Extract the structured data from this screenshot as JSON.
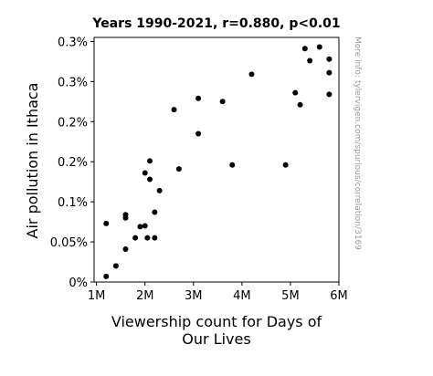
{
  "chart_data": {
    "type": "scatter",
    "title": "Years 1990-2021, r=0.880, p<0.01",
    "xlabel_lines": [
      "Viewership count for Days of",
      "Our Lives"
    ],
    "ylabel": "Air pollution in Ithaca",
    "xlim": [
      950000,
      6000000
    ],
    "ylim": [
      0,
      0.00305
    ],
    "xticks": [
      {
        "value": 1000000,
        "label": "1M"
      },
      {
        "value": 2000000,
        "label": "2M"
      },
      {
        "value": 3000000,
        "label": "3M"
      },
      {
        "value": 4000000,
        "label": "4M"
      },
      {
        "value": 5000000,
        "label": "5M"
      },
      {
        "value": 6000000,
        "label": "6M"
      }
    ],
    "yticks": [
      {
        "value": 0,
        "label": "0%"
      },
      {
        "value": 0.0005,
        "label": "0.05%"
      },
      {
        "value": 0.001,
        "label": "0.1%"
      },
      {
        "value": 0.0015,
        "label": "0.2%"
      },
      {
        "value": 0.002,
        "label": "0.2%"
      },
      {
        "value": 0.0025,
        "label": "0.3%"
      },
      {
        "value": 0.003,
        "label": "0.3%"
      }
    ],
    "grid": false,
    "watermark": "More info: tylervigen.com/spurious/correlation/3169",
    "points": [
      {
        "x": 1200000,
        "y": 7e-05
      },
      {
        "x": 1200000,
        "y": 0.00073
      },
      {
        "x": 1400000,
        "y": 0.0002
      },
      {
        "x": 1600000,
        "y": 0.00041
      },
      {
        "x": 1600000,
        "y": 0.0008
      },
      {
        "x": 1600000,
        "y": 0.00084
      },
      {
        "x": 1800000,
        "y": 0.00055
      },
      {
        "x": 1900000,
        "y": 0.00069
      },
      {
        "x": 2000000,
        "y": 0.0007
      },
      {
        "x": 2050000,
        "y": 0.00055
      },
      {
        "x": 2200000,
        "y": 0.00055
      },
      {
        "x": 2200000,
        "y": 0.00087
      },
      {
        "x": 2300000,
        "y": 0.00114
      },
      {
        "x": 2000000,
        "y": 0.00136
      },
      {
        "x": 2100000,
        "y": 0.00128
      },
      {
        "x": 2100000,
        "y": 0.00151
      },
      {
        "x": 2700000,
        "y": 0.00141
      },
      {
        "x": 2600000,
        "y": 0.00215
      },
      {
        "x": 3100000,
        "y": 0.00185
      },
      {
        "x": 3100000,
        "y": 0.00229
      },
      {
        "x": 3600000,
        "y": 0.00225
      },
      {
        "x": 3800000,
        "y": 0.00146
      },
      {
        "x": 4200000,
        "y": 0.00259
      },
      {
        "x": 4900000,
        "y": 0.00146
      },
      {
        "x": 5100000,
        "y": 0.00236
      },
      {
        "x": 5200000,
        "y": 0.00221
      },
      {
        "x": 5300000,
        "y": 0.00291
      },
      {
        "x": 5400000,
        "y": 0.00276
      },
      {
        "x": 5600000,
        "y": 0.00293
      },
      {
        "x": 5800000,
        "y": 0.00278
      },
      {
        "x": 5800000,
        "y": 0.00261
      },
      {
        "x": 5800000,
        "y": 0.00234
      }
    ]
  }
}
